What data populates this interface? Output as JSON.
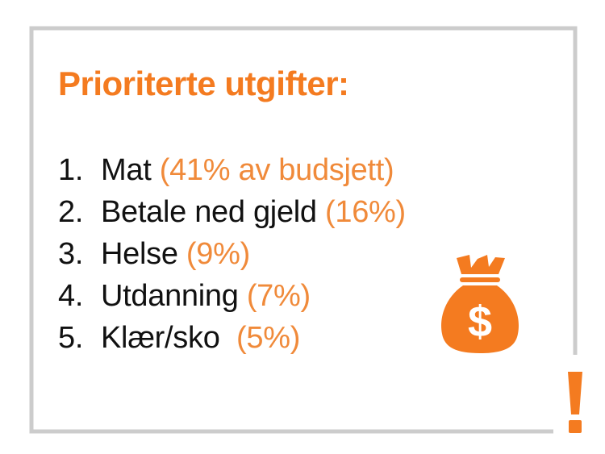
{
  "colors": {
    "accent": "#F47B20",
    "percent": "#F08A3A",
    "text": "#111111",
    "frame": "#CCCCCC"
  },
  "heading": "Prioriterte utgifter:",
  "items": [
    {
      "number": "1.",
      "label": "Mat",
      "detail": "(41% av budsjett)"
    },
    {
      "number": "2.",
      "label": "Betale ned gjeld",
      "detail": "(16%)"
    },
    {
      "number": "3.",
      "label": "Helse",
      "detail": "(9%)"
    },
    {
      "number": "4.",
      "label": "Utdanning",
      "detail": "(7%)"
    },
    {
      "number": "5.",
      "label": "Klær/sko ",
      "detail": "(5%)"
    }
  ],
  "icons": {
    "bag": "money-bag-icon",
    "bag_symbol": "$",
    "exclamation": "exclamation-icon"
  }
}
